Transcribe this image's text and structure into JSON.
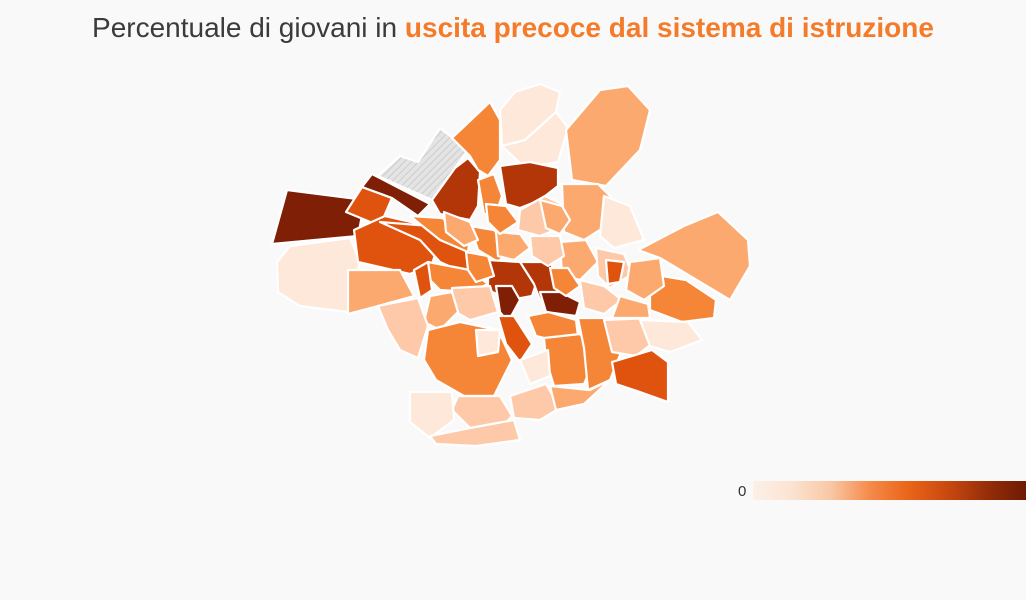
{
  "title": {
    "prefix": "Percentuale di giovani in ",
    "highlight": "uscita precoce dal sistema di istruzione"
  },
  "colors": {
    "background": "#f9f9f9",
    "title_text": "#3b3b3b",
    "highlight": "#f47b2a",
    "border": "#ffffff",
    "no_data": "#d9d9d9",
    "scale": [
      "#fde8da",
      "#fdc9a8",
      "#fca96f",
      "#f58638",
      "#e0530f",
      "#b33608",
      "#7f1f05"
    ]
  },
  "legend": {
    "min_label": "0",
    "gradient": [
      "#fdf0e7",
      "#fbe3d1",
      "#f9c7a4",
      "#f58a4a",
      "#ea6418",
      "#c94810",
      "#962e08",
      "#6e1a04"
    ]
  }
}
